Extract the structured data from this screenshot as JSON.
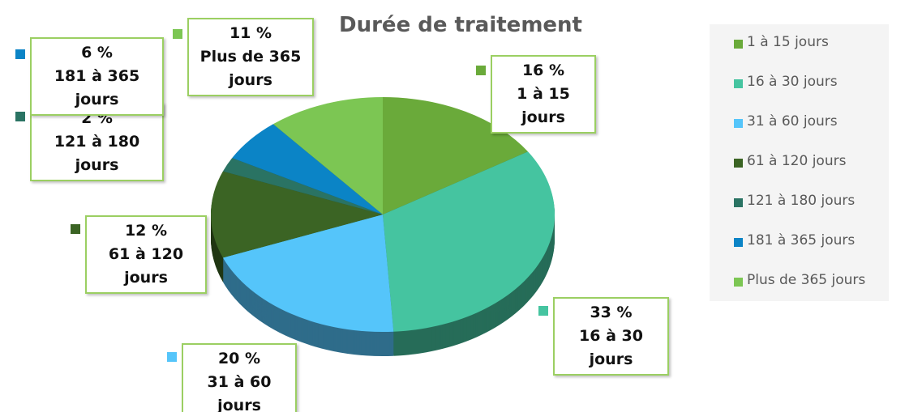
{
  "chart_data": {
    "type": "pie",
    "title": "Durée de traitement",
    "categories": [
      "1 à 15 jours",
      "16 à 30 jours",
      "31 à 60 jours",
      "61 à 120 jours",
      "121 à 180 jours",
      "181 à 365 jours",
      "Plus de 365 jours"
    ],
    "values": [
      16,
      33,
      20,
      12,
      2,
      6,
      11
    ],
    "value_labels": [
      "16 %",
      "33 %",
      "20 %",
      "12 %",
      "2 %",
      "6 %",
      "11 %"
    ],
    "colors": [
      "#6aaa3a",
      "#45c4a0",
      "#55c5fa",
      "#3b6424",
      "#2a7363",
      "#0b84c6",
      "#7cc653"
    ],
    "legend": "right"
  }
}
